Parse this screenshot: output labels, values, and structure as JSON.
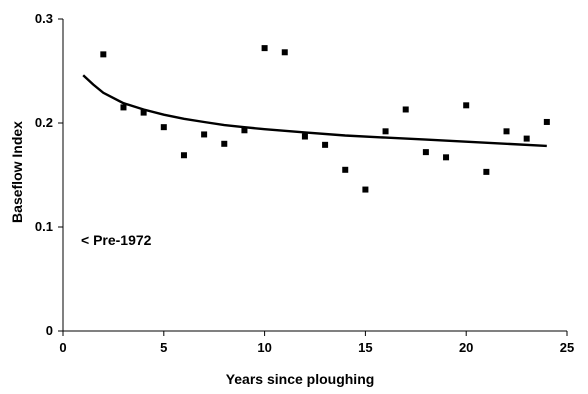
{
  "chart_data": {
    "type": "scatter",
    "title": "",
    "xlabel": "Years since ploughing",
    "ylabel": "Baseflow Index",
    "xlim": [
      0,
      25
    ],
    "ylim": [
      0,
      0.3
    ],
    "x_ticks": [
      0,
      5,
      10,
      15,
      20,
      25
    ],
    "x_tick_labels": [
      "0",
      "5",
      "10",
      "15",
      "20",
      "25"
    ],
    "y_ticks": [
      0,
      0.1,
      0.2,
      0.3
    ],
    "y_tick_labels": [
      "0",
      "0.1",
      "0.2",
      "0.3"
    ],
    "grid": false,
    "legend": "none",
    "annotation": "< Pre-1972",
    "series": [
      {
        "type": "scatter",
        "marker": "square",
        "color": "#000000",
        "points": [
          {
            "x": 2,
            "y": 0.266
          },
          {
            "x": 3,
            "y": 0.215
          },
          {
            "x": 4,
            "y": 0.21
          },
          {
            "x": 5,
            "y": 0.196
          },
          {
            "x": 6,
            "y": 0.169
          },
          {
            "x": 7,
            "y": 0.189
          },
          {
            "x": 8,
            "y": 0.18
          },
          {
            "x": 9,
            "y": 0.193
          },
          {
            "x": 10,
            "y": 0.272
          },
          {
            "x": 11,
            "y": 0.268
          },
          {
            "x": 12,
            "y": 0.187
          },
          {
            "x": 13,
            "y": 0.179
          },
          {
            "x": 14,
            "y": 0.155
          },
          {
            "x": 15,
            "y": 0.136
          },
          {
            "x": 16,
            "y": 0.192
          },
          {
            "x": 17,
            "y": 0.213
          },
          {
            "x": 18,
            "y": 0.172
          },
          {
            "x": 19,
            "y": 0.167
          },
          {
            "x": 20,
            "y": 0.217
          },
          {
            "x": 21,
            "y": 0.153
          },
          {
            "x": 22,
            "y": 0.192
          },
          {
            "x": 23,
            "y": 0.185
          },
          {
            "x": 24,
            "y": 0.201
          }
        ]
      },
      {
        "type": "line",
        "color": "#000000",
        "points": [
          {
            "x": 1,
            "y": 0.246
          },
          {
            "x": 1.5,
            "y": 0.237
          },
          {
            "x": 2,
            "y": 0.229
          },
          {
            "x": 3,
            "y": 0.219
          },
          {
            "x": 4,
            "y": 0.213
          },
          {
            "x": 5,
            "y": 0.208
          },
          {
            "x": 6,
            "y": 0.204
          },
          {
            "x": 7,
            "y": 0.201
          },
          {
            "x": 8,
            "y": 0.198
          },
          {
            "x": 9,
            "y": 0.196
          },
          {
            "x": 10,
            "y": 0.194
          },
          {
            "x": 12,
            "y": 0.191
          },
          {
            "x": 14,
            "y": 0.188
          },
          {
            "x": 16,
            "y": 0.186
          },
          {
            "x": 18,
            "y": 0.184
          },
          {
            "x": 20,
            "y": 0.182
          },
          {
            "x": 22,
            "y": 0.18
          },
          {
            "x": 24,
            "y": 0.178
          }
        ]
      }
    ]
  }
}
